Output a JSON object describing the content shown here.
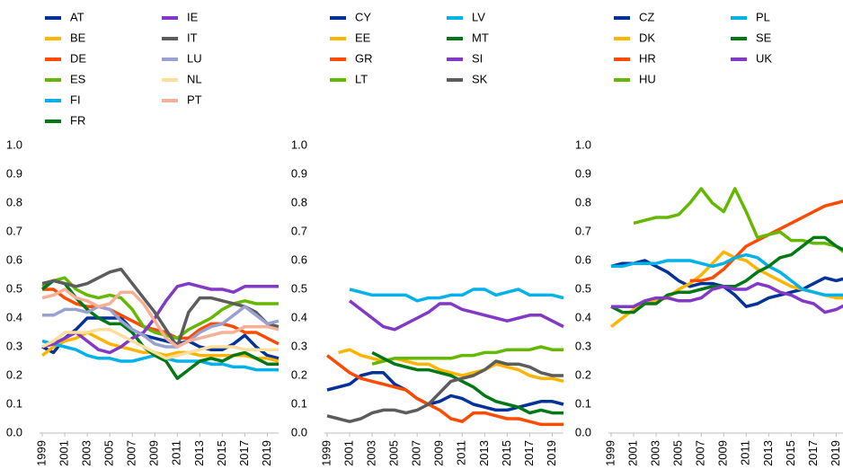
{
  "chart_data": [
    {
      "type": "line",
      "x": [
        1999,
        2000,
        2001,
        2002,
        2003,
        2004,
        2005,
        2006,
        2007,
        2008,
        2009,
        2010,
        2011,
        2012,
        2013,
        2014,
        2015,
        2016,
        2017,
        2018,
        2019,
        2020
      ],
      "xlim": [
        1999,
        2020
      ],
      "xticks": [
        1999,
        2001,
        2003,
        2005,
        2007,
        2009,
        2011,
        2013,
        2015,
        2017,
        2019
      ],
      "ylim": [
        0,
        1
      ],
      "yticks": [
        {
          "value": 0,
          "label": "0.0"
        },
        0.1,
        0.2,
        0.3,
        0.4,
        0.5,
        0.6,
        0.7,
        0.8,
        0.9,
        {
          "value": 1,
          "label": "1.0"
        }
      ],
      "series": [
        {
          "name": "AT",
          "color": "#003299",
          "values": [
            0.3,
            0.28,
            0.33,
            0.36,
            0.4,
            0.4,
            0.4,
            0.4,
            0.36,
            0.34,
            0.33,
            0.32,
            0.31,
            0.32,
            0.3,
            0.29,
            0.29,
            0.31,
            0.34,
            0.3,
            0.27,
            0.26
          ]
        },
        {
          "name": "BE",
          "color": "#ffb400",
          "values": [
            0.27,
            0.3,
            0.32,
            0.33,
            0.35,
            0.33,
            0.31,
            0.3,
            0.29,
            0.28,
            0.28,
            0.27,
            0.28,
            0.28,
            0.27,
            0.27,
            0.27,
            0.27,
            0.27,
            0.26,
            0.26,
            0.25
          ]
        },
        {
          "name": "DE",
          "color": "#ff4b00",
          "values": [
            0.5,
            0.5,
            0.47,
            0.45,
            0.44,
            0.44,
            0.43,
            0.41,
            0.39,
            0.37,
            0.36,
            0.35,
            0.33,
            0.33,
            0.36,
            0.38,
            0.38,
            0.37,
            0.35,
            0.35,
            0.33,
            0.31
          ]
        },
        {
          "name": "ES",
          "color": "#65b800",
          "values": [
            0.51,
            0.53,
            0.54,
            0.5,
            0.48,
            0.47,
            0.48,
            0.47,
            0.43,
            0.37,
            0.35,
            0.34,
            0.33,
            0.36,
            0.38,
            0.4,
            0.43,
            0.45,
            0.46,
            0.45,
            0.45,
            0.45
          ]
        },
        {
          "name": "FI",
          "color": "#00b1ea",
          "values": [
            0.32,
            0.31,
            0.3,
            0.29,
            0.27,
            0.26,
            0.26,
            0.25,
            0.25,
            0.26,
            0.27,
            0.26,
            0.25,
            0.25,
            0.25,
            0.24,
            0.24,
            0.23,
            0.23,
            0.22,
            0.22,
            0.22
          ]
        },
        {
          "name": "FR",
          "color": "#007816",
          "values": [
            0.5,
            0.53,
            0.52,
            0.47,
            0.43,
            0.4,
            0.38,
            0.38,
            0.35,
            0.3,
            0.27,
            0.25,
            0.19,
            0.22,
            0.25,
            0.26,
            0.25,
            0.27,
            0.28,
            0.26,
            0.24,
            0.24
          ]
        },
        {
          "name": "IE",
          "color": "#8139c6",
          "values": [
            0.3,
            0.31,
            0.33,
            0.35,
            0.32,
            0.29,
            0.28,
            0.3,
            0.33,
            0.35,
            0.4,
            0.46,
            0.51,
            0.52,
            0.51,
            0.5,
            0.5,
            0.49,
            0.51,
            0.51,
            0.51,
            0.51
          ]
        },
        {
          "name": "IT",
          "color": "#5c5c5c",
          "values": [
            0.52,
            0.53,
            0.52,
            0.51,
            0.52,
            0.54,
            0.56,
            0.57,
            0.52,
            0.47,
            0.42,
            0.36,
            0.3,
            0.42,
            0.47,
            0.47,
            0.46,
            0.45,
            0.44,
            0.42,
            0.38,
            0.37
          ]
        },
        {
          "name": "LU",
          "color": "#98a1d0",
          "values": [
            0.41,
            0.41,
            0.43,
            0.43,
            0.42,
            0.44,
            0.43,
            0.39,
            0.36,
            0.34,
            0.31,
            0.3,
            0.3,
            0.32,
            0.35,
            0.37,
            0.38,
            0.41,
            0.44,
            0.41,
            0.38,
            0.39
          ]
        },
        {
          "name": "NL",
          "color": "#fdde9c",
          "values": [
            0.3,
            0.32,
            0.35,
            0.35,
            0.35,
            0.36,
            0.36,
            0.34,
            0.32,
            0.3,
            0.28,
            0.26,
            0.27,
            0.28,
            0.29,
            0.3,
            0.3,
            0.3,
            0.29,
            0.29,
            0.29,
            0.29
          ]
        },
        {
          "name": "PT",
          "color": "#f6b096",
          "values": [
            0.47,
            0.48,
            0.5,
            0.47,
            0.46,
            0.44,
            0.45,
            0.49,
            0.49,
            0.45,
            0.39,
            0.33,
            0.3,
            0.32,
            0.33,
            0.34,
            0.35,
            0.35,
            0.37,
            0.37,
            0.37,
            0.36
          ]
        }
      ]
    },
    {
      "type": "line",
      "x": [
        1999,
        2000,
        2001,
        2002,
        2003,
        2004,
        2005,
        2006,
        2007,
        2008,
        2009,
        2010,
        2011,
        2012,
        2013,
        2014,
        2015,
        2016,
        2017,
        2018,
        2019,
        2020
      ],
      "xlim": [
        1999,
        2020
      ],
      "xticks": [
        1999,
        2001,
        2003,
        2005,
        2007,
        2009,
        2011,
        2013,
        2015,
        2017,
        2019
      ],
      "ylim": [
        0,
        1
      ],
      "yticks": [
        {
          "value": 0,
          "label": "0.0"
        },
        0.1,
        0.2,
        0.3,
        0.4,
        0.5,
        0.6,
        0.7,
        0.8,
        0.9,
        {
          "value": 1,
          "label": "1.0"
        }
      ],
      "series": [
        {
          "name": "CY",
          "color": "#003299",
          "values": [
            0.15,
            0.16,
            0.17,
            0.2,
            0.21,
            0.21,
            0.17,
            0.15,
            0.12,
            0.1,
            0.11,
            0.13,
            0.12,
            0.1,
            0.09,
            0.08,
            0.08,
            0.09,
            0.1,
            0.11,
            0.11,
            0.1
          ]
        },
        {
          "name": "EE",
          "color": "#ffb400",
          "values": [
            null,
            0.28,
            0.29,
            0.27,
            0.26,
            0.25,
            0.26,
            0.25,
            0.24,
            0.24,
            0.22,
            0.21,
            0.2,
            0.21,
            0.22,
            0.24,
            0.23,
            0.22,
            0.2,
            0.19,
            0.19,
            0.18
          ]
        },
        {
          "name": "GR",
          "color": "#ff4b00",
          "values": [
            0.27,
            0.24,
            0.21,
            0.19,
            0.18,
            0.17,
            0.16,
            0.15,
            0.12,
            0.1,
            0.08,
            0.05,
            0.04,
            0.07,
            0.07,
            0.06,
            0.05,
            0.05,
            0.04,
            0.03,
            0.03,
            0.03
          ]
        },
        {
          "name": "LT",
          "color": "#65b800",
          "values": [
            null,
            null,
            null,
            null,
            0.24,
            0.25,
            0.26,
            0.26,
            0.26,
            0.26,
            0.26,
            0.26,
            0.27,
            0.27,
            0.28,
            0.28,
            0.29,
            0.29,
            0.29,
            0.3,
            0.29,
            0.29
          ]
        },
        {
          "name": "LV",
          "color": "#00b1ea",
          "values": [
            null,
            null,
            0.5,
            0.49,
            0.48,
            0.48,
            0.48,
            0.48,
            0.46,
            0.47,
            0.47,
            0.48,
            0.48,
            0.5,
            0.5,
            0.48,
            0.49,
            0.5,
            0.48,
            0.48,
            0.48,
            0.47
          ]
        },
        {
          "name": "MT",
          "color": "#007816",
          "values": [
            null,
            null,
            null,
            null,
            0.28,
            0.26,
            0.24,
            0.23,
            0.22,
            0.22,
            0.21,
            0.2,
            0.18,
            0.16,
            0.13,
            0.11,
            0.1,
            0.09,
            0.07,
            0.08,
            0.07,
            0.07
          ]
        },
        {
          "name": "SI",
          "color": "#8139c6",
          "values": [
            null,
            null,
            0.46,
            0.43,
            0.4,
            0.37,
            0.36,
            0.38,
            0.4,
            0.42,
            0.45,
            0.45,
            0.43,
            0.42,
            0.41,
            0.4,
            0.39,
            0.4,
            0.41,
            0.41,
            0.39,
            0.37
          ]
        },
        {
          "name": "SK",
          "color": "#5c5c5c",
          "values": [
            0.06,
            0.05,
            0.04,
            0.05,
            0.07,
            0.08,
            0.08,
            0.07,
            0.08,
            0.1,
            0.14,
            0.18,
            0.19,
            0.2,
            0.22,
            0.25,
            0.24,
            0.24,
            0.23,
            0.21,
            0.2,
            0.2
          ]
        }
      ]
    },
    {
      "type": "line",
      "x": [
        1999,
        2000,
        2001,
        2002,
        2003,
        2004,
        2005,
        2006,
        2007,
        2008,
        2009,
        2010,
        2011,
        2012,
        2013,
        2014,
        2015,
        2016,
        2017,
        2018,
        2019,
        2020
      ],
      "xlim": [
        1999,
        2020
      ],
      "xticks": [
        1999,
        2001,
        2003,
        2005,
        2007,
        2009,
        2011,
        2013,
        2015,
        2017,
        2019
      ],
      "ylim": [
        0,
        1
      ],
      "yticks": [
        {
          "value": 0,
          "label": "0.0"
        },
        0.1,
        0.2,
        0.3,
        0.4,
        0.5,
        0.6,
        0.7,
        0.8,
        0.9,
        {
          "value": 1,
          "label": "1.0"
        }
      ],
      "series": [
        {
          "name": "CZ",
          "color": "#003299",
          "values": [
            0.58,
            0.59,
            0.59,
            0.6,
            0.58,
            0.56,
            0.53,
            0.51,
            0.52,
            0.52,
            0.51,
            0.48,
            0.44,
            0.45,
            0.47,
            0.48,
            0.49,
            0.5,
            0.52,
            0.54,
            0.53,
            0.54
          ]
        },
        {
          "name": "DK",
          "color": "#ffb400",
          "values": [
            0.37,
            0.4,
            0.43,
            0.45,
            0.46,
            0.47,
            0.5,
            0.52,
            0.55,
            0.59,
            0.63,
            0.61,
            0.6,
            0.57,
            0.55,
            0.53,
            0.51,
            0.5,
            0.49,
            0.48,
            0.47,
            0.47
          ]
        },
        {
          "name": "HR",
          "color": "#ff4b00",
          "values": [
            null,
            null,
            null,
            null,
            null,
            null,
            null,
            0.53,
            0.53,
            0.54,
            0.57,
            0.61,
            0.65,
            0.67,
            0.69,
            0.71,
            0.73,
            0.75,
            0.77,
            0.79,
            0.8,
            0.81
          ]
        },
        {
          "name": "HU",
          "color": "#65b800",
          "values": [
            null,
            null,
            0.73,
            0.74,
            0.75,
            0.75,
            0.76,
            0.8,
            0.85,
            0.8,
            0.77,
            0.85,
            0.77,
            0.68,
            0.69,
            0.7,
            0.67,
            0.67,
            0.66,
            0.66,
            0.65,
            0.62
          ]
        },
        {
          "name": "PL",
          "color": "#00b1ea",
          "values": [
            0.58,
            0.58,
            0.59,
            0.59,
            0.59,
            0.6,
            0.6,
            0.6,
            0.59,
            0.58,
            0.59,
            0.61,
            0.62,
            0.61,
            0.58,
            0.56,
            0.53,
            0.5,
            0.49,
            0.48,
            0.48,
            0.48
          ]
        },
        {
          "name": "SE",
          "color": "#007816",
          "values": [
            0.44,
            0.42,
            0.42,
            0.45,
            0.45,
            0.48,
            0.49,
            0.49,
            0.5,
            0.51,
            0.51,
            0.51,
            0.53,
            0.56,
            0.58,
            0.61,
            0.62,
            0.65,
            0.68,
            0.68,
            0.65,
            0.63
          ]
        },
        {
          "name": "UK",
          "color": "#8139c6",
          "values": [
            0.44,
            0.44,
            0.44,
            0.46,
            0.47,
            0.47,
            0.46,
            0.46,
            0.47,
            0.5,
            0.51,
            0.5,
            0.5,
            0.52,
            0.51,
            0.49,
            0.48,
            0.46,
            0.45,
            0.42,
            0.43,
            0.45
          ]
        }
      ]
    }
  ]
}
